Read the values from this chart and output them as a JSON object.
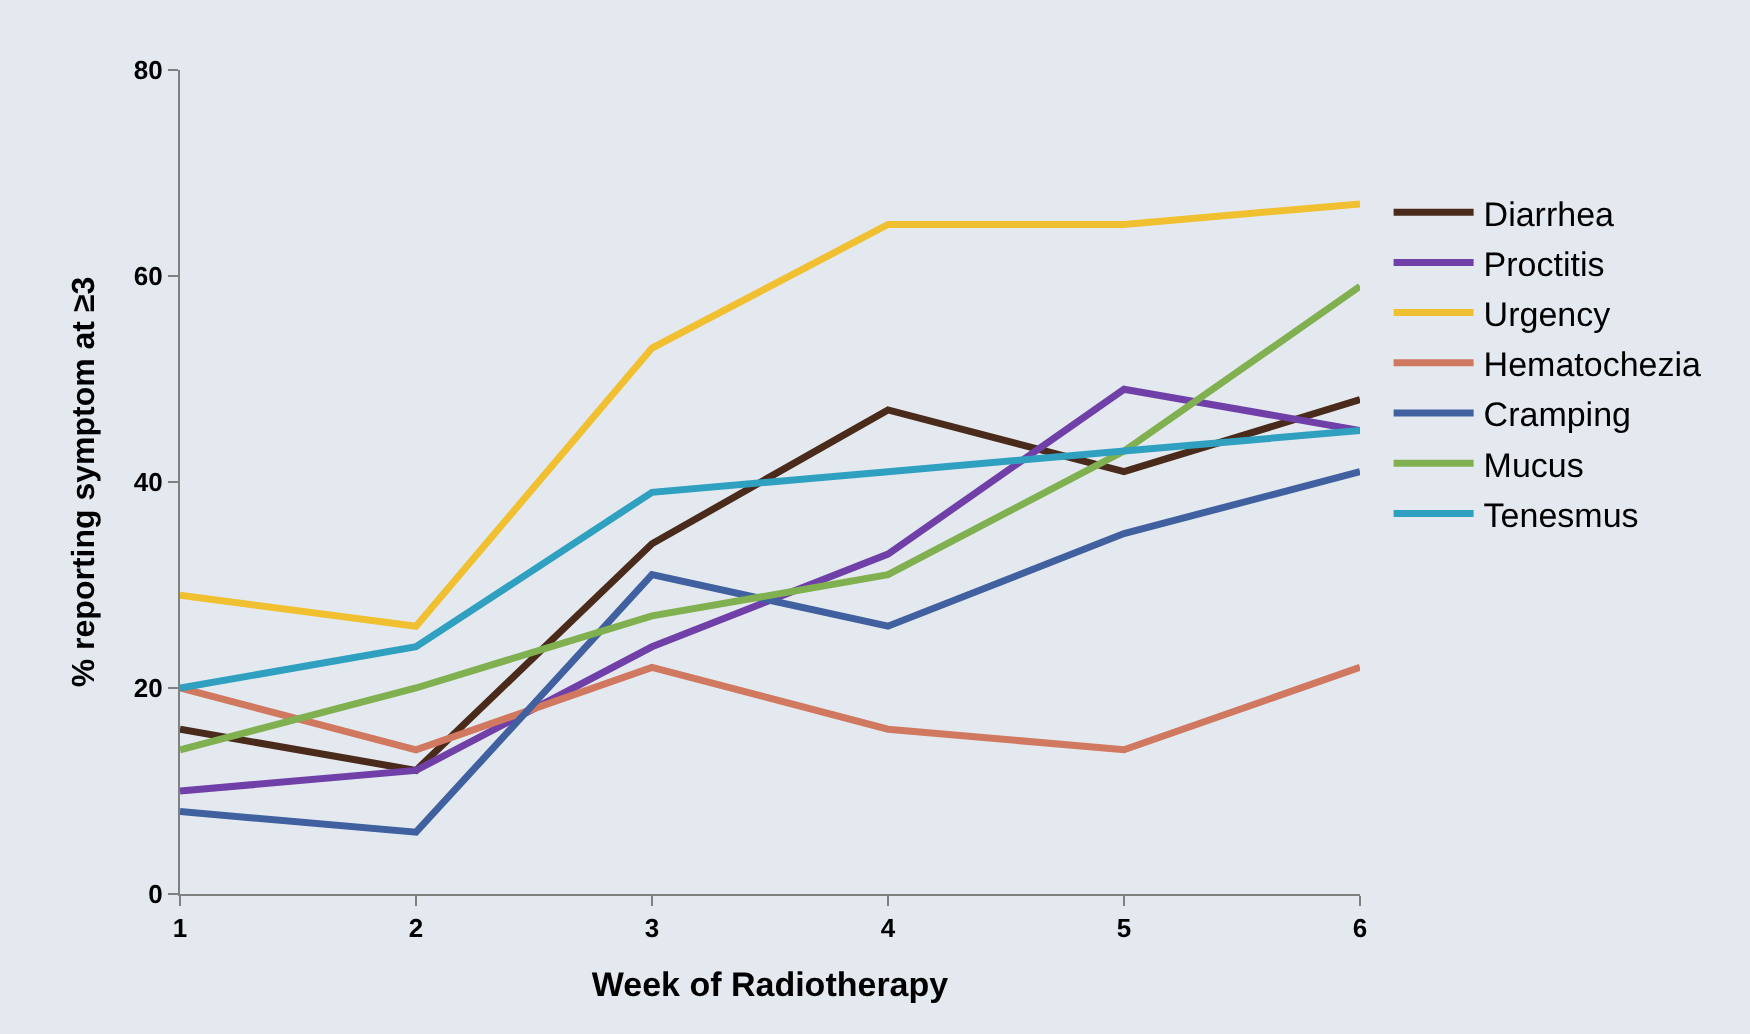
{
  "chart_data": {
    "type": "line",
    "xlabel": "Week of Radiotherapy",
    "ylabel": "% reporting symptom at ≥3",
    "x": [
      1,
      2,
      3,
      4,
      5,
      6
    ],
    "xlim": [
      1,
      6
    ],
    "xticks": [
      1,
      2,
      3,
      4,
      5,
      6
    ],
    "ylim": [
      0,
      80
    ],
    "yticks": [
      0,
      20,
      40,
      60,
      80
    ],
    "grid": false,
    "legend": "right",
    "marker": "none",
    "line_style": "solid",
    "series": [
      {
        "name": "Diarrhea",
        "color": "#4a2a1a",
        "values": [
          16,
          12,
          34,
          47,
          41,
          48
        ]
      },
      {
        "name": "Proctitis",
        "color": "#7040a8",
        "values": [
          10,
          12,
          24,
          33,
          49,
          45
        ]
      },
      {
        "name": "Urgency",
        "color": "#f0c030",
        "values": [
          29,
          26,
          53,
          65,
          65,
          67
        ]
      },
      {
        "name": "Hematochezia",
        "color": "#d07860",
        "values": [
          20,
          14,
          22,
          16,
          14,
          22
        ]
      },
      {
        "name": "Cramping",
        "color": "#4060a0",
        "values": [
          8,
          6,
          31,
          26,
          35,
          41
        ]
      },
      {
        "name": "Mucus",
        "color": "#80b050",
        "values": [
          14,
          20,
          27,
          31,
          43,
          59
        ]
      },
      {
        "name": "Tenesmus",
        "color": "#30a0c0",
        "values": [
          20,
          24,
          39,
          41,
          43,
          45
        ]
      }
    ]
  }
}
